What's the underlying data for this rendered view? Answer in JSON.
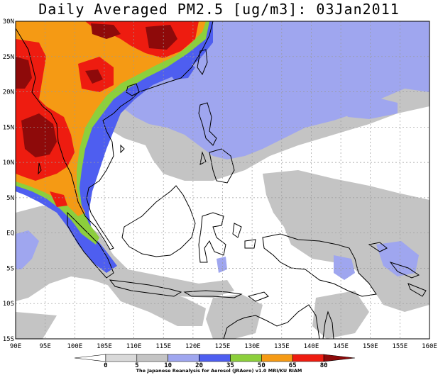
{
  "title": "Daily Averaged PM2.5 [ug/m3]: 03Jan2011",
  "credit": "The Japanese Reanalysis for Aerosol (JRAero) v1.0 MRI/KU RIAM",
  "lat_labels": [
    "30N",
    "25N",
    "20N",
    "15N",
    "10N",
    "5N",
    "EQ",
    "5S",
    "10S",
    "15S"
  ],
  "lon_labels": [
    "90E",
    "95E",
    "100E",
    "105E",
    "110E",
    "115E",
    "120E",
    "125E",
    "130E",
    "135E",
    "140E",
    "145E",
    "150E",
    "155E",
    "160E"
  ],
  "colorbar": {
    "ticks": [
      "0",
      "5",
      "10",
      "20",
      "35",
      "50",
      "65",
      "80"
    ],
    "colors": [
      "#ffffff",
      "#d9d9d9",
      "#c4c4c4",
      "#9fa6ef",
      "#4e5ef0",
      "#8ccf3c",
      "#f59a14",
      "#ee1c10",
      "#8e0a0a"
    ]
  },
  "levels": {
    "c1": "#c4c4c4",
    "c2": "#9fa6ef",
    "c3": "#4e5ef0",
    "c4": "#8ccf3c",
    "c5": "#f59a14",
    "c6": "#ee1c10",
    "c7": "#8e0a0a"
  }
}
